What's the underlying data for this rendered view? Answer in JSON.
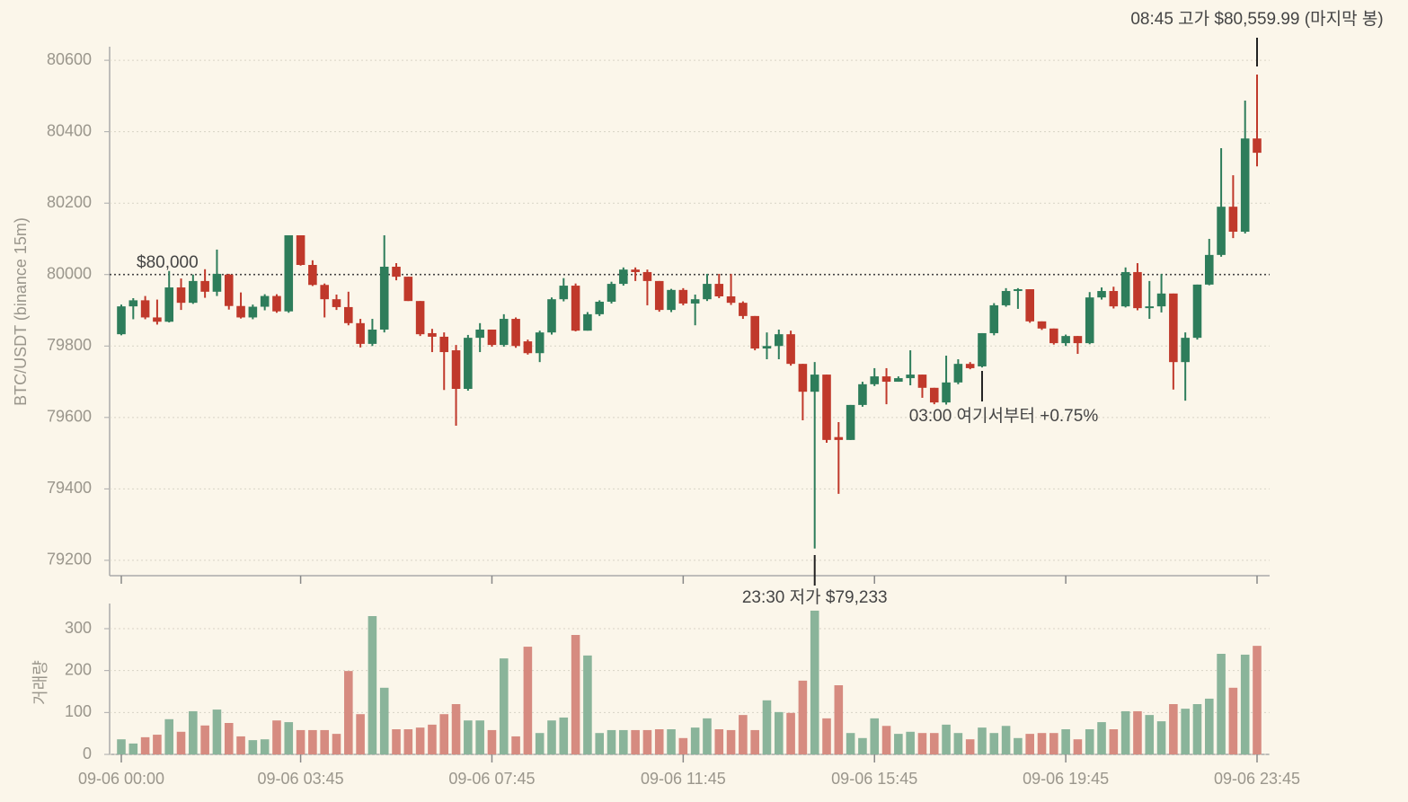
{
  "chart_data": {
    "type": "candlestick",
    "ylabel": "BTC/USDT (binance 15m)",
    "categories": [
      "09-06 00:00",
      null,
      null,
      null,
      null,
      null,
      null,
      null,
      null,
      null,
      null,
      null,
      null,
      null,
      null,
      "09-06 03:45",
      null,
      null,
      null,
      null,
      null,
      null,
      null,
      null,
      null,
      null,
      null,
      null,
      null,
      null,
      null,
      "09-06 07:45",
      null,
      null,
      null,
      null,
      null,
      null,
      null,
      null,
      null,
      null,
      null,
      null,
      null,
      null,
      null,
      "09-06 11:45",
      null,
      null,
      null,
      null,
      null,
      null,
      null,
      null,
      null,
      null,
      null,
      null,
      null,
      null,
      null,
      "09-06 15:45",
      null,
      null,
      null,
      null,
      null,
      null,
      null,
      null,
      null,
      null,
      null,
      null,
      null,
      null,
      null,
      "09-06 19:45",
      null,
      null,
      null,
      null,
      null,
      null,
      null,
      null,
      null,
      null,
      null,
      null,
      null,
      null,
      null,
      "09-06 23:45"
    ],
    "open": [
      79833,
      79911,
      79928,
      79880,
      79868,
      79964,
      79921,
      79982,
      79952,
      80000,
      79912,
      79880,
      79910,
      79940,
      79897,
      80110,
      80027,
      79971,
      79931,
      79909,
      79864,
      79806,
      79846,
      80022,
      79994,
      79926,
      79836,
      79826,
      79788,
      79680,
      79823,
      79846,
      79803,
      79876,
      79813,
      79780,
      79838,
      79931,
      79969,
      79843,
      79889,
      79924,
      79974,
      80014,
      80007,
      79982,
      79901,
      79957,
      79919,
      79931,
      79974,
      79939,
      79921,
      79884,
      79793,
      79800,
      79833,
      79750,
      79672,
      79720,
      79545,
      79537,
      79635,
      79693,
      79715,
      79700,
      79710,
      79720,
      79683,
      79642,
      79698,
      79750,
      79743,
      79836,
      79914,
      79954,
      79959,
      79869,
      79849,
      79808,
      79828,
      79808,
      79936,
      79954,
      79911,
      80007,
      79906,
      79911,
      79947,
      79755,
      79823,
      79972,
      80055,
      80190,
      80120,
      80381
    ],
    "high": [
      79916,
      79934,
      79940,
      79930,
      80010,
      79989,
      80000,
      80015,
      80070,
      80002,
      79950,
      79916,
      79945,
      79945,
      80110,
      80110,
      80040,
      79975,
      79944,
      79952,
      79876,
      79876,
      80110,
      80032,
      79994,
      79926,
      79848,
      79838,
      79803,
      79831,
      79864,
      79846,
      79889,
      79880,
      79818,
      79843,
      79936,
      79990,
      79975,
      79895,
      79928,
      79980,
      80020,
      80020,
      80014,
      79982,
      79960,
      79962,
      79944,
      80002,
      80002,
      80002,
      79925,
      79884,
      79838,
      79846,
      79843,
      79750,
      79755,
      79720,
      79587,
      79635,
      79700,
      79738,
      79738,
      79715,
      79788,
      79720,
      79683,
      79773,
      79763,
      79755,
      79836,
      79920,
      79962,
      79962,
      79959,
      79869,
      79849,
      79832,
      79828,
      79951,
      79964,
      79966,
      80020,
      80032,
      79982,
      80002,
      79947,
      79838,
      79972,
      80100,
      80354,
      80278,
      80487,
      80559.99
    ],
    "low": [
      79830,
      79875,
      79875,
      79860,
      79866,
      79901,
      79918,
      79935,
      79940,
      79902,
      79877,
      79875,
      79900,
      79893,
      79893,
      80025,
      79968,
      79880,
      79901,
      79858,
      79796,
      79800,
      79838,
      79984,
      79926,
      79828,
      79783,
      79677,
      79577,
      79675,
      79783,
      79798,
      79798,
      79795,
      79776,
      79755,
      79832,
      79925,
      79841,
      79843,
      79884,
      79919,
      79969,
      79982,
      79914,
      79896,
      79895,
      79914,
      79858,
      79926,
      79934,
      79915,
      79876,
      79788,
      79763,
      79763,
      79745,
      79592,
      79233,
      79529,
      79386,
      79537,
      79630,
      79688,
      79637,
      79700,
      79690,
      79655,
      79637,
      79636,
      79693,
      79735,
      79740,
      79830,
      79910,
      79904,
      79865,
      79845,
      79804,
      79800,
      79778,
      79805,
      79930,
      79905,
      79908,
      79900,
      79876,
      79894,
      79678,
      79647,
      79818,
      79970,
      80050,
      80102,
      80115,
      80303
    ],
    "close": [
      79911,
      79928,
      79880,
      79868,
      79964,
      79921,
      79982,
      79952,
      80002,
      79912,
      79880,
      79910,
      79940,
      79897,
      80110,
      80027,
      79971,
      79931,
      79909,
      79864,
      79806,
      79846,
      80022,
      79994,
      79926,
      79833,
      79826,
      79783,
      79680,
      79823,
      79846,
      79803,
      79876,
      79800,
      79780,
      79838,
      79931,
      79969,
      79843,
      79889,
      79924,
      79974,
      80014,
      80007,
      79982,
      79901,
      79957,
      79919,
      79931,
      79974,
      79939,
      79921,
      79884,
      79793,
      79800,
      79833,
      79750,
      79672,
      79720,
      79537,
      79537,
      79635,
      79693,
      79715,
      79700,
      79710,
      79720,
      79683,
      79642,
      79698,
      79750,
      79738,
      79836,
      79914,
      79954,
      79959,
      79869,
      79849,
      79808,
      79828,
      79808,
      79936,
      79954,
      79911,
      80007,
      79906,
      79911,
      79947,
      79755,
      79823,
      79972,
      80055,
      80190,
      80120,
      80381,
      80341
    ],
    "up_color": "#2e7d5b",
    "down_color": "#c0392b",
    "ylim": [
      79157,
      80638
    ],
    "yticks": [
      79200,
      79400,
      79600,
      79800,
      80000,
      80200,
      80400,
      80600
    ],
    "grid": true,
    "reference_line": {
      "value": 80000,
      "label": "$80,000"
    },
    "annotations": [
      "23:30 저가 $79,233",
      "03:00 여기서부터 +0.75%",
      "08:45 고가 $80,559.99 (마지막 봉)"
    ],
    "volume": {
      "ylabel": "거래량",
      "values": [
        36,
        26,
        41,
        47,
        84,
        54,
        103,
        69,
        107,
        75,
        43,
        34,
        36,
        81,
        77,
        58,
        58,
        58,
        49,
        199,
        96,
        330,
        159,
        60,
        60,
        64,
        71,
        96,
        120,
        81,
        81,
        58,
        229,
        43,
        257,
        51,
        81,
        88,
        285,
        236,
        51,
        58,
        58,
        58,
        58,
        60,
        60,
        39,
        64,
        86,
        60,
        58,
        94,
        58,
        129,
        101,
        99,
        176,
        343,
        86,
        165,
        51,
        39,
        86,
        68,
        49,
        54,
        51,
        51,
        71,
        51,
        36,
        64,
        51,
        68,
        39,
        49,
        51,
        51,
        60,
        36,
        60,
        77,
        60,
        103,
        103,
        94,
        79,
        120,
        109,
        120,
        133,
        240,
        159,
        238,
        259
      ],
      "up_color": "#8ab49a",
      "down_color": "#d68b80",
      "ylim": [
        0,
        360
      ],
      "yticks": [
        0,
        100,
        200,
        300
      ]
    }
  }
}
